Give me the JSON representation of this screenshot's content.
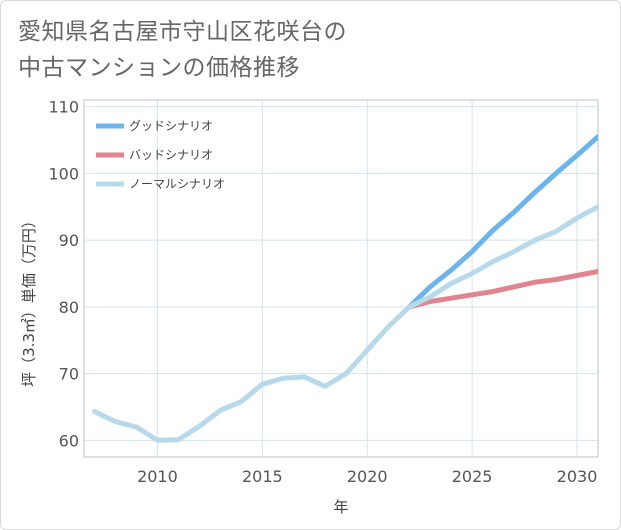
{
  "title": {
    "line1": "愛知県名古屋市守山区花咲台の",
    "line2": "中古マンションの価格推移"
  },
  "chart_data": {
    "type": "line",
    "xlabel": "年",
    "ylabel": "坪（3.3㎡）単価（万円）",
    "xlim": [
      2006.5,
      2031
    ],
    "ylim": [
      57.5,
      111
    ],
    "x_ticks": [
      2010,
      2015,
      2020,
      2025,
      2030
    ],
    "y_ticks": [
      60,
      70,
      80,
      90,
      100,
      110
    ],
    "grid": true,
    "legend_position": "top-left",
    "series": [
      {
        "name": "グッドシナリオ",
        "color": "#6cb4ea",
        "x": [
          2022,
          2023,
          2024,
          2025,
          2026,
          2027,
          2028,
          2029,
          2030,
          2031
        ],
        "values": [
          80.0,
          83.0,
          85.5,
          88.3,
          91.5,
          94.2,
          97.2,
          100.0,
          102.7,
          105.5
        ]
      },
      {
        "name": "バッドシナリオ",
        "color": "#e0858f",
        "x": [
          2022,
          2023,
          2024,
          2025,
          2026,
          2027,
          2028,
          2029,
          2030,
          2031
        ],
        "values": [
          80.0,
          80.8,
          81.3,
          81.8,
          82.3,
          83.0,
          83.7,
          84.1,
          84.7,
          85.3
        ]
      },
      {
        "name": "ノーマルシナリオ",
        "color": "#b7d9ea",
        "x": [
          2007,
          2008,
          2009,
          2010,
          2011,
          2012,
          2013,
          2014,
          2015,
          2016,
          2017,
          2018,
          2019,
          2020,
          2021,
          2022,
          2023,
          2024,
          2025,
          2026,
          2027,
          2028,
          2029,
          2030,
          2031
        ],
        "values": [
          64.3,
          62.8,
          62.0,
          60.0,
          60.1,
          62.1,
          64.5,
          65.8,
          68.4,
          69.3,
          69.5,
          68.1,
          70.0,
          73.5,
          77.0,
          80.0,
          81.5,
          83.5,
          85.0,
          86.8,
          88.3,
          90.0,
          91.3,
          93.3,
          95.0
        ]
      }
    ]
  }
}
